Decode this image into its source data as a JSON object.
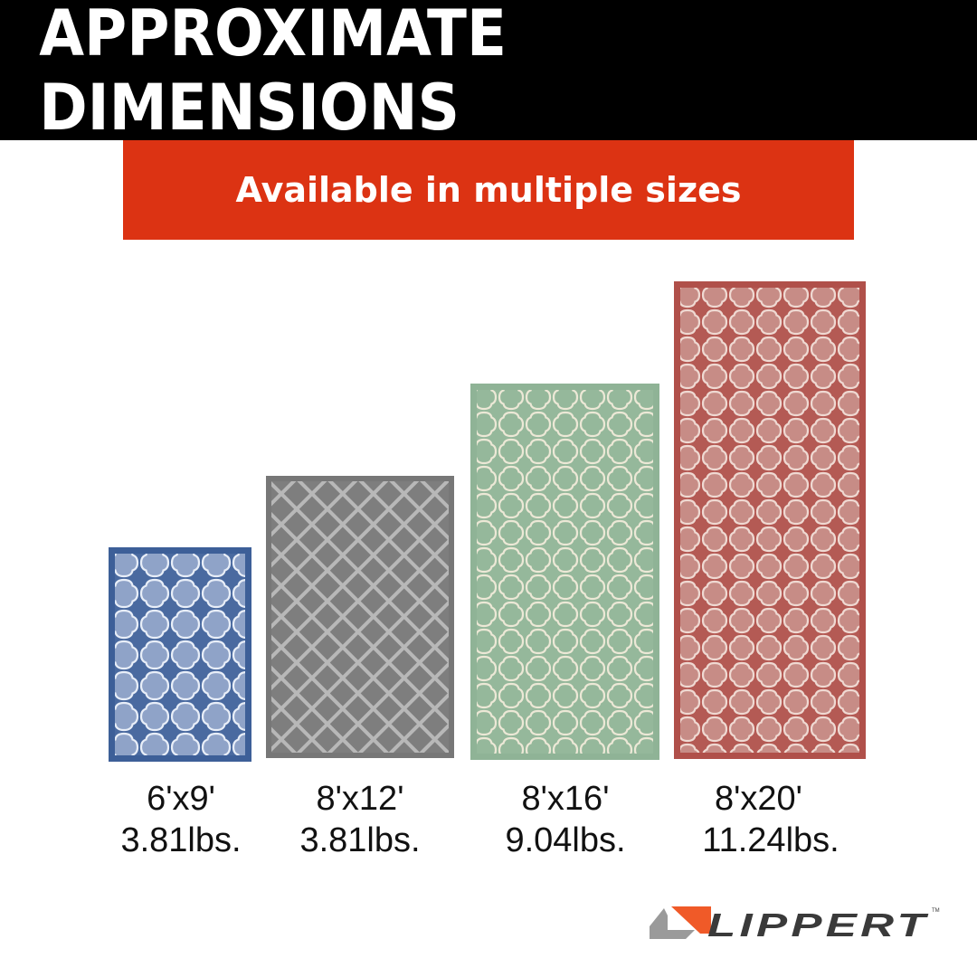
{
  "header": {
    "title": "APPROXIMATE DIMENSIONS"
  },
  "banner": {
    "subtitle": "Available in multiple sizes"
  },
  "rugs": [
    {
      "size": "6'x9'",
      "weight": "3.81lbs.",
      "color": "blue",
      "border": "#3d5f98",
      "fill": "#8fa3c8",
      "line": "#e8eef8"
    },
    {
      "size": "8'x12'",
      "weight": "3.81lbs.",
      "color": "gray",
      "border": "#777777",
      "fill": "#7e7e7e",
      "line": "#b8b8b8"
    },
    {
      "size": "8'x16'",
      "weight": "9.04lbs.",
      "color": "green",
      "border": "#8fb396",
      "fill": "#95b89b",
      "line": "#ece8d6"
    },
    {
      "size": "8'x20'",
      "weight": "11.24lbs.",
      "color": "red",
      "border": "#b0504a",
      "fill": "#c78c86",
      "line": "#efd9d2"
    }
  ],
  "brand": {
    "name": "LIPPERT",
    "accent": "#f05a28",
    "gray": "#9a9a9a",
    "dark": "#3a3a3a"
  },
  "colors": {
    "header_bg": "#000000",
    "banner_bg": "#dc3313"
  }
}
